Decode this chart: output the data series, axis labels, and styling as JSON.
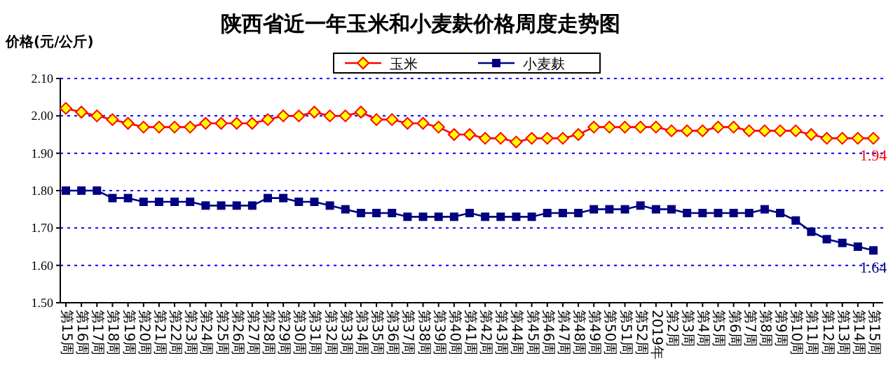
{
  "chart_data": {
    "type": "line",
    "title": "陕西省近一年玉米和小麦麸价格周度走势图",
    "ylabel": "价格(元/公斤)",
    "categories": [
      "第15周",
      "第16周",
      "第17周",
      "第18周",
      "第19周",
      "第20周",
      "第21周",
      "第22周",
      "第23周",
      "第24周",
      "第25周",
      "第26周",
      "第27周",
      "第28周",
      "第29周",
      "第30周",
      "第31周",
      "第32周",
      "第33周",
      "第34周",
      "第35周",
      "第36周",
      "第37周",
      "第38周",
      "第39周",
      "第40周",
      "第41周",
      "第42周",
      "第43周",
      "第44周",
      "第45周",
      "第46周",
      "第47周",
      "第48周",
      "第49周",
      "第50周",
      "第51周",
      "第52周",
      "2019年",
      "第2周",
      "第3周",
      "第4周",
      "第5周",
      "第6周",
      "第7周",
      "第8周",
      "第9周",
      "第10周",
      "第11周",
      "第12周",
      "第13周",
      "第14周",
      "第15周"
    ],
    "series": [
      {
        "name": "玉米",
        "color": "#ff0000",
        "marker": "diamond",
        "values": [
          2.02,
          2.01,
          2.0,
          1.99,
          1.98,
          1.97,
          1.97,
          1.97,
          1.97,
          1.98,
          1.98,
          1.98,
          1.98,
          1.99,
          2.0,
          2.0,
          2.01,
          2.0,
          2.0,
          2.01,
          1.99,
          1.99,
          1.98,
          1.98,
          1.97,
          1.95,
          1.95,
          1.94,
          1.94,
          1.93,
          1.94,
          1.94,
          1.94,
          1.95,
          1.97,
          1.97,
          1.97,
          1.97,
          1.97,
          1.96,
          1.96,
          1.96,
          1.97,
          1.97,
          1.96,
          1.96,
          1.96,
          1.96,
          1.95,
          1.94,
          1.94,
          1.94,
          1.94
        ],
        "value_labels": [
          null,
          null,
          null,
          null,
          null,
          null,
          null,
          null,
          null,
          null,
          null,
          null,
          null,
          null,
          null,
          null,
          null,
          null,
          null,
          null,
          null,
          null,
          null,
          null,
          null,
          null,
          null,
          null,
          null,
          null,
          null,
          null,
          null,
          null,
          null,
          null,
          null,
          null,
          null,
          null,
          null,
          null,
          null,
          null,
          null,
          null,
          null,
          null,
          null,
          null,
          null,
          null,
          "1.94"
        ]
      },
      {
        "name": "小麦麸",
        "color": "#000080",
        "marker": "square",
        "values": [
          1.8,
          1.8,
          1.8,
          1.78,
          1.78,
          1.77,
          1.77,
          1.77,
          1.77,
          1.76,
          1.76,
          1.76,
          1.76,
          1.78,
          1.78,
          1.77,
          1.77,
          1.76,
          1.75,
          1.74,
          1.74,
          1.74,
          1.73,
          1.73,
          1.73,
          1.73,
          1.74,
          1.73,
          1.73,
          1.73,
          1.73,
          1.74,
          1.74,
          1.74,
          1.75,
          1.75,
          1.75,
          1.76,
          1.75,
          1.75,
          1.74,
          1.74,
          1.74,
          1.74,
          1.74,
          1.75,
          1.74,
          1.72,
          1.69,
          1.67,
          1.66,
          1.65,
          1.64
        ],
        "value_labels": [
          null,
          null,
          null,
          null,
          null,
          null,
          null,
          null,
          null,
          null,
          null,
          null,
          null,
          null,
          null,
          null,
          null,
          null,
          null,
          null,
          null,
          null,
          null,
          null,
          null,
          null,
          null,
          null,
          null,
          null,
          null,
          null,
          null,
          null,
          null,
          null,
          null,
          null,
          null,
          null,
          null,
          null,
          null,
          null,
          null,
          null,
          null,
          null,
          null,
          null,
          null,
          null,
          "1.64"
        ]
      }
    ],
    "ylim": [
      1.5,
      2.1
    ],
    "yticks": [
      {
        "value": 1.5,
        "label": "1.50"
      },
      {
        "value": 1.6,
        "label": "1.60"
      },
      {
        "value": 1.7,
        "label": "1.70"
      },
      {
        "value": 1.8,
        "label": "1.80"
      },
      {
        "value": 1.9,
        "label": "1.90"
      },
      {
        "value": 2.0,
        "label": "2.00"
      },
      {
        "value": 2.1,
        "label": "2.10"
      }
    ],
    "grid": "y",
    "legend": "top",
    "line_style": "solid"
  }
}
